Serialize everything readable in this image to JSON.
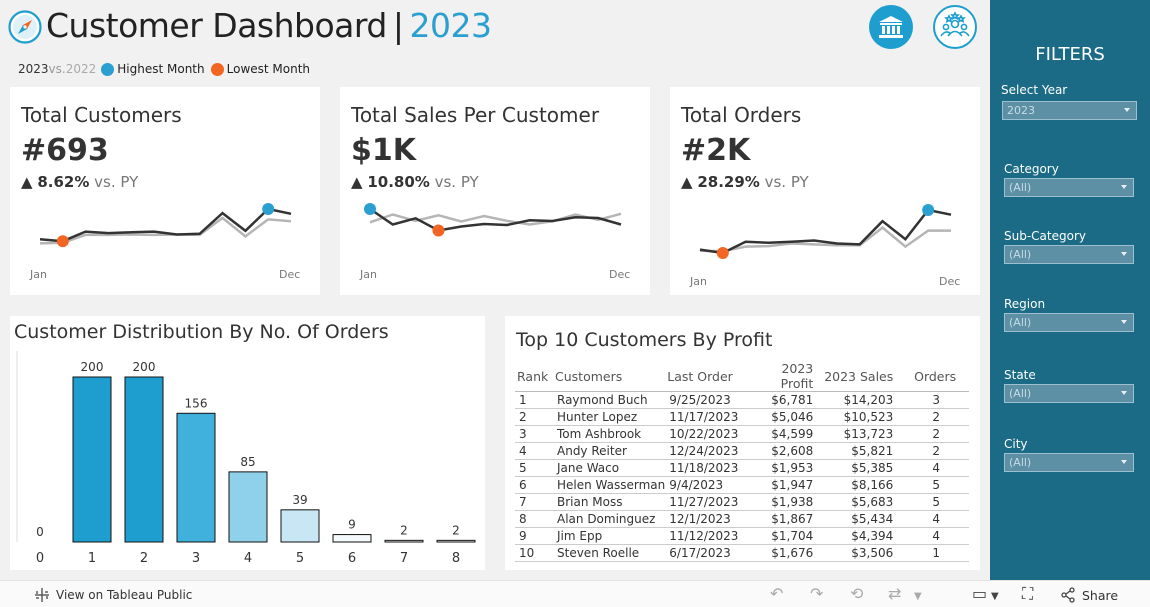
{
  "header": {
    "title": "Customer Dashboard",
    "separator": "|",
    "year": "2023",
    "legend": {
      "current_year": "2023",
      "vs_text": "vs.",
      "prior_year": "2022",
      "highest_label": "Highest Month",
      "lowest_label": "Lowest Month"
    }
  },
  "colors": {
    "accent": "#2a9fd0",
    "lowest": "#f26522",
    "current_line": "#333333",
    "prior_line": "#b5b5b5",
    "bar_dark": "#1e9ecf",
    "sidebar": "#1b6b86"
  },
  "kpis": [
    {
      "title": "Total Customers",
      "value": "#693",
      "arrow": "▲",
      "change": "8.62%",
      "vs_label": "vs. PY",
      "start_label": "Jan",
      "end_label": "Dec",
      "current": [
        0.18,
        0.13,
        0.39,
        0.35,
        0.37,
        0.39,
        0.31,
        0.33,
        0.89,
        0.41,
        1.0,
        0.87
      ],
      "prior": [
        0.07,
        0.09,
        0.3,
        0.3,
        0.31,
        0.3,
        0.31,
        0.3,
        0.76,
        0.26,
        0.72,
        0.67
      ],
      "highest_index": 10,
      "lowest_index": 1
    },
    {
      "title": "Total Sales Per Customer",
      "value": "$1K",
      "arrow": "▲",
      "change": "10.80%",
      "vs_label": "vs. PY",
      "start_label": "Jan",
      "end_label": "Dec",
      "current": [
        1.0,
        0.38,
        0.63,
        0.14,
        0.3,
        0.4,
        0.36,
        0.55,
        0.52,
        0.67,
        0.64,
        0.38
      ],
      "prior": [
        0.47,
        0.78,
        0.53,
        0.75,
        0.5,
        0.72,
        0.53,
        0.38,
        0.51,
        0.78,
        0.57,
        0.81
      ],
      "highest_index": 0,
      "lowest_index": 3
    },
    {
      "title": "Total Orders",
      "value": "#2K",
      "arrow": "▲",
      "change": "28.29%",
      "vs_label": "vs. PY",
      "start_label": "Jan",
      "end_label": "Dec",
      "current": [
        0.08,
        0.0,
        0.26,
        0.24,
        0.26,
        0.29,
        0.22,
        0.2,
        0.74,
        0.32,
        1.0,
        0.89
      ],
      "prior": [
        0.05,
        0.04,
        0.15,
        0.16,
        0.22,
        0.2,
        0.18,
        0.18,
        0.59,
        0.15,
        0.52,
        0.52
      ],
      "highest_index": 10,
      "lowest_index": 1
    }
  ],
  "chart_data": {
    "type": "bar",
    "title": "Customer Distribution By No. Of Orders",
    "categories": [
      "0",
      "1",
      "2",
      "3",
      "4",
      "5",
      "6",
      "7",
      "8"
    ],
    "values": [
      0,
      200,
      200,
      156,
      85,
      39,
      9,
      2,
      2
    ],
    "colors": [
      "#1e9ecf",
      "#1e9ecf",
      "#1e9ecf",
      "#40b0dc",
      "#8fd0ea",
      "#c8e6f3",
      "#f4f9fc",
      "#f4f9fc",
      "#f4f9fc"
    ],
    "xlabel": "",
    "ylabel": "",
    "ylim": [
      0,
      200
    ]
  },
  "top10": {
    "title": "Top 10 Customers By Profit",
    "columns": [
      "Rank",
      "Customers",
      "Last Order",
      "2023 Profit",
      "2023 Sales",
      "Orders"
    ],
    "rows": [
      [
        "1",
        "Raymond Buch",
        "9/25/2023",
        "$6,781",
        "$14,203",
        "3"
      ],
      [
        "2",
        "Hunter Lopez",
        "11/17/2023",
        "$5,046",
        "$10,523",
        "2"
      ],
      [
        "3",
        "Tom Ashbrook",
        "10/22/2023",
        "$4,599",
        "$13,723",
        "2"
      ],
      [
        "4",
        "Andy Reiter",
        "12/24/2023",
        "$2,608",
        "$5,821",
        "2"
      ],
      [
        "5",
        "Jane Waco",
        "11/18/2023",
        "$1,953",
        "$5,385",
        "4"
      ],
      [
        "6",
        "Helen Wasserman",
        "9/4/2023",
        "$1,947",
        "$8,166",
        "5"
      ],
      [
        "7",
        "Brian Moss",
        "11/27/2023",
        "$1,938",
        "$5,683",
        "5"
      ],
      [
        "8",
        "Alan Dominguez",
        "12/1/2023",
        "$1,867",
        "$5,434",
        "4"
      ],
      [
        "9",
        "Jim Epp",
        "11/12/2023",
        "$1,704",
        "$4,394",
        "4"
      ],
      [
        "10",
        "Steven Roelle",
        "6/17/2023",
        "$1,676",
        "$3,506",
        "1"
      ]
    ]
  },
  "filters": {
    "title": "FILTERS",
    "items": [
      {
        "label": "Select Year",
        "value": "2023"
      },
      {
        "label": "Category",
        "value": "(All)"
      },
      {
        "label": "Sub-Category",
        "value": "(All)"
      },
      {
        "label": "Region",
        "value": "(All)"
      },
      {
        "label": "State",
        "value": "(All)"
      },
      {
        "label": "City",
        "value": "(All)"
      }
    ]
  },
  "toolbar": {
    "view_label": "View on Tableau Public",
    "share_label": "Share"
  },
  "icons": {
    "logo": "compass-icon",
    "bank": "bank-icon",
    "people": "people-icon"
  }
}
